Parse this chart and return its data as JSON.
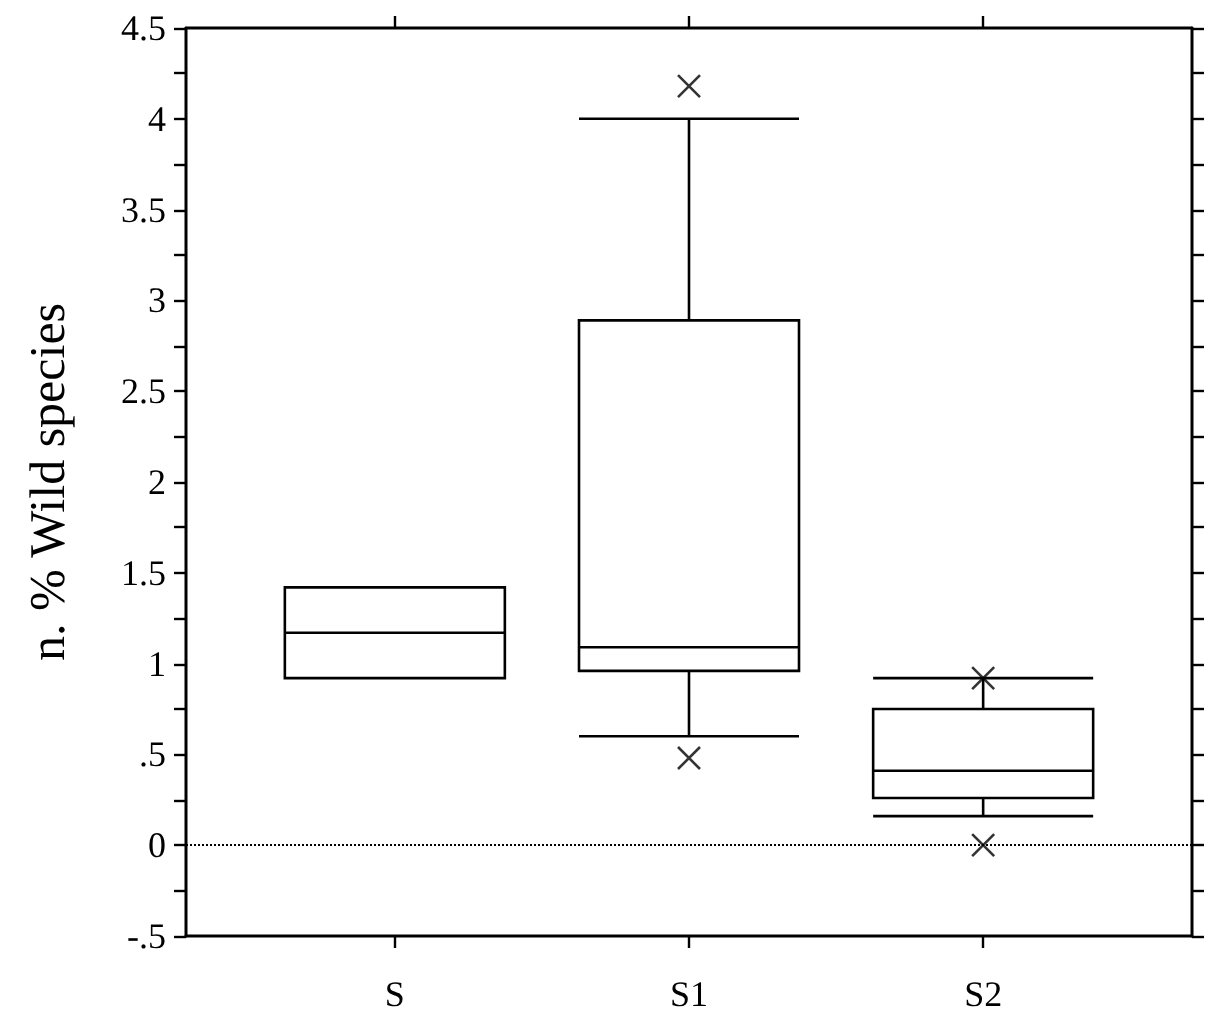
{
  "chart_data": {
    "type": "box",
    "ylabel": "n. % Wild species",
    "categories": [
      "S",
      "S1",
      "S2"
    ],
    "color": "#000000",
    "boxes": [
      {
        "low": 0.92,
        "q1": 0.92,
        "median": 1.17,
        "q3": 1.42,
        "high": 1.42
      },
      {
        "low": 0.6,
        "q1": 0.96,
        "median": 1.09,
        "q3": 2.89,
        "high": 4.0,
        "outliers": [
          4.18,
          0.48
        ]
      },
      {
        "low": 0.16,
        "q1": 0.26,
        "median": 0.41,
        "q3": 0.75,
        "high": 0.92,
        "outliers": [
          0.92,
          0
        ]
      }
    ],
    "ylim": [
      -0.5,
      4.5
    ],
    "yticks": [
      {
        "value": -0.5,
        "label": "-.5"
      },
      {
        "value": -0.25,
        "label": null
      },
      0,
      {
        "value": 0.25,
        "label": null
      },
      {
        "value": 0.5,
        "label": ".5"
      },
      {
        "value": 0.75,
        "label": null
      },
      1,
      {
        "value": 1.25,
        "label": null
      },
      1.5,
      {
        "value": 1.75,
        "label": null
      },
      2,
      {
        "value": 2.25,
        "label": null
      },
      2.5,
      {
        "value": 2.75,
        "label": null
      },
      3,
      {
        "value": 3.25,
        "label": null
      },
      3.5,
      {
        "value": 3.75,
        "label": null
      },
      4,
      {
        "value": 4.25,
        "label": null
      },
      4.5
    ],
    "ref_lines": [
      {
        "axis": "y",
        "value": 0,
        "line_style": "dotted",
        "color": "#000000"
      }
    ],
    "marker": "cross",
    "grid": false
  }
}
